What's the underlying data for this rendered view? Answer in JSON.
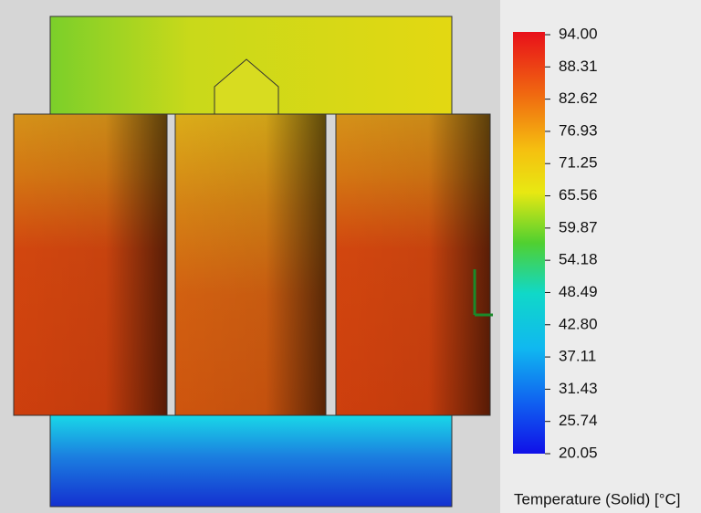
{
  "legend": {
    "ticks": [
      "94.00",
      "88.31",
      "82.62",
      "76.93",
      "71.25",
      "65.56",
      "59.87",
      "54.18",
      "48.49",
      "42.80",
      "37.11",
      "31.43",
      "25.74",
      "20.05"
    ],
    "title": "Temperature (Solid) [°C]"
  }
}
